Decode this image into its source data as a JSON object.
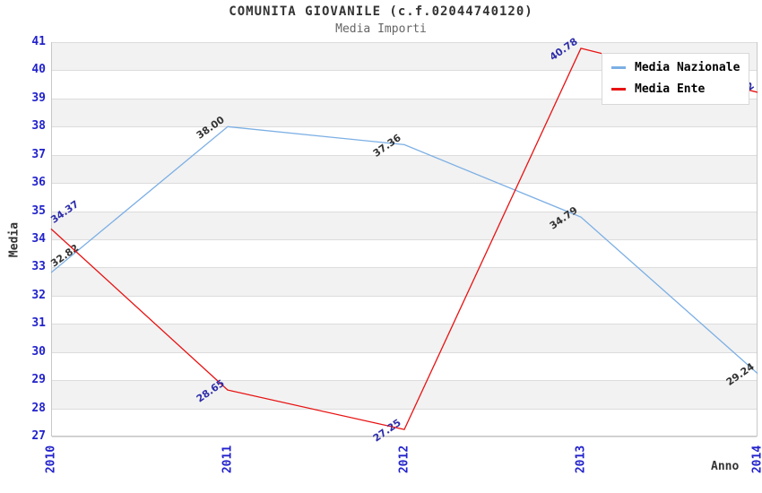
{
  "title": "COMUNITA GIOVANILE (c.f.02044740120)",
  "subtitle": "Media Importi",
  "colors": {
    "axis_tick": "#2222cc",
    "band": "#f2f2f2",
    "gridline": "#dcdcdc",
    "plot_border": "#c8c8c8",
    "title_text": "#333333",
    "subtitle_text": "#666666",
    "nazionale_line": "#7cafe4",
    "ente_line": "#e81212"
  },
  "chart_data": {
    "type": "line",
    "title": "COMUNITA GIOVANILE (c.f.02044740120)",
    "subtitle": "Media Importi",
    "x": [
      "2010",
      "2011",
      "2012",
      "2013",
      "2014"
    ],
    "xlabel": "Anno",
    "ylabel": "Media",
    "ylim": [
      27,
      41
    ],
    "ytick_step": 1,
    "grid": "alternating-horizontal-bands",
    "legend_position": "top-right",
    "series": [
      {
        "name": "Media Nazionale",
        "color": "#7cafe4",
        "label_color": "#333333",
        "values": [
          32.82,
          38.0,
          37.36,
          34.79,
          29.24
        ],
        "labels": [
          "32.82",
          "38.00",
          "37.36",
          "34.79",
          "29.24"
        ]
      },
      {
        "name": "Media Ente",
        "color": "#e81212",
        "label_color": "#2d2daa",
        "values": [
          34.37,
          28.65,
          27.25,
          40.78,
          39.22
        ],
        "labels": [
          "34.37",
          "28.65",
          "27.25",
          "40.78",
          "39.22"
        ]
      }
    ]
  }
}
